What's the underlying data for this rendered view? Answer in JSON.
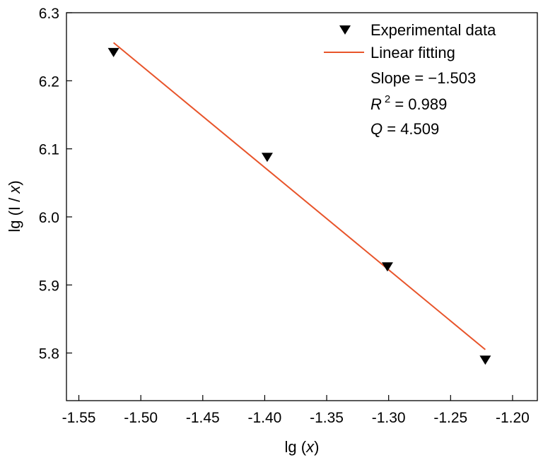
{
  "chart_data": {
    "type": "scatter",
    "title": "",
    "xlabel": {
      "prefix": "lg (",
      "var": "x",
      "suffix": ")"
    },
    "ylabel": {
      "prefix": "lg (I / ",
      "var": "x",
      "suffix": ")"
    },
    "xlim": [
      -1.56,
      -1.18
    ],
    "ylim": [
      5.73,
      6.3
    ],
    "xticks": [
      -1.55,
      -1.5,
      -1.45,
      -1.4,
      -1.35,
      -1.3,
      -1.25,
      -1.2
    ],
    "xtick_labels": [
      "-1.55",
      "-1.50",
      "-1.45",
      "-1.40",
      "-1.35",
      "-1.30",
      "-1.25",
      "-1.20"
    ],
    "yticks": [
      5.8,
      5.9,
      6.0,
      6.1,
      6.2,
      6.3
    ],
    "ytick_labels": [
      "5.8",
      "5.9",
      "6.0",
      "6.1",
      "6.2",
      "6.3"
    ],
    "grid": false,
    "legend_position": "top-right",
    "series": [
      {
        "name": "Experimental data",
        "kind": "scatter",
        "marker": "triangle-down",
        "color": "#000000",
        "x": [
          -1.522,
          -1.398,
          -1.301,
          -1.222
        ],
        "y": [
          6.242,
          6.088,
          5.927,
          5.79
        ]
      },
      {
        "name": "Linear fitting",
        "kind": "line",
        "color": "#e8542a",
        "x": [
          -1.522,
          -1.222
        ],
        "y": [
          6.256,
          5.805
        ]
      }
    ],
    "annotations": {
      "slope": {
        "label": "Slope = ",
        "value": "−1.503"
      },
      "r2": {
        "var": "R",
        "sup": "2",
        "text": " = 0.989"
      },
      "q": {
        "var": "Q",
        "text": " = 4.509"
      }
    }
  }
}
